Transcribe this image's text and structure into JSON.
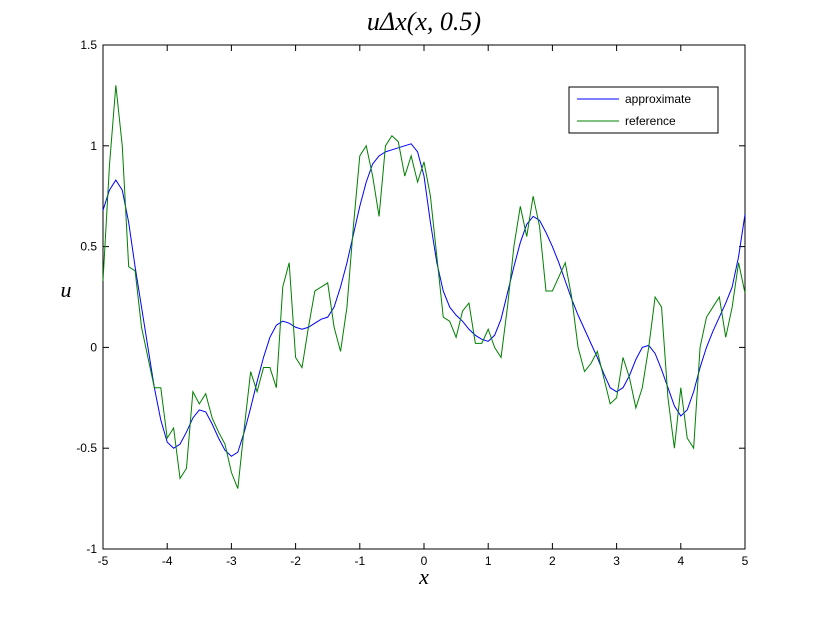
{
  "chart_data": {
    "type": "line",
    "title": "uΔx(x, 0.5)",
    "xlabel": "x",
    "ylabel": "u",
    "x": [
      -5.0,
      -4.9,
      -4.8,
      -4.7,
      -4.6,
      -4.5,
      -4.4,
      -4.3,
      -4.2,
      -4.1,
      -4.0,
      -3.9,
      -3.8,
      -3.7,
      -3.6,
      -3.5,
      -3.4,
      -3.3,
      -3.2,
      -3.1,
      -3.0,
      -2.9,
      -2.8,
      -2.7,
      -2.6,
      -2.5,
      -2.4,
      -2.3,
      -2.2,
      -2.1,
      -2.0,
      -1.9,
      -1.8,
      -1.7,
      -1.6,
      -1.5,
      -1.4,
      -1.3,
      -1.2,
      -1.1,
      -1.0,
      -0.9,
      -0.8,
      -0.7,
      -0.6,
      -0.5,
      -0.4,
      -0.3,
      -0.2,
      -0.1,
      0.0,
      0.1,
      0.2,
      0.3,
      0.4,
      0.5,
      0.6,
      0.7,
      0.8,
      0.9,
      1.0,
      1.1,
      1.2,
      1.3,
      1.4,
      1.5,
      1.6,
      1.7,
      1.8,
      1.9,
      2.0,
      2.1,
      2.2,
      2.3,
      2.4,
      2.5,
      2.6,
      2.7,
      2.8,
      2.9,
      3.0,
      3.1,
      3.2,
      3.3,
      3.4,
      3.5,
      3.6,
      3.7,
      3.8,
      3.9,
      4.0,
      4.1,
      4.2,
      4.3,
      4.4,
      4.5,
      4.6,
      4.7,
      4.8,
      4.9,
      5.0
    ],
    "series": [
      {
        "name": "approximate",
        "color": "#0000ff",
        "values": [
          0.68,
          0.78,
          0.83,
          0.78,
          0.62,
          0.4,
          0.2,
          0.0,
          -0.2,
          -0.36,
          -0.47,
          -0.5,
          -0.48,
          -0.42,
          -0.35,
          -0.31,
          -0.32,
          -0.38,
          -0.45,
          -0.51,
          -0.54,
          -0.52,
          -0.42,
          -0.3,
          -0.17,
          -0.05,
          0.05,
          0.11,
          0.13,
          0.12,
          0.1,
          0.09,
          0.1,
          0.12,
          0.14,
          0.15,
          0.2,
          0.3,
          0.42,
          0.56,
          0.7,
          0.82,
          0.91,
          0.95,
          0.97,
          0.98,
          0.99,
          1.0,
          1.01,
          0.97,
          0.85,
          0.62,
          0.42,
          0.28,
          0.2,
          0.16,
          0.13,
          0.09,
          0.06,
          0.04,
          0.03,
          0.06,
          0.14,
          0.27,
          0.4,
          0.52,
          0.61,
          0.65,
          0.63,
          0.57,
          0.5,
          0.42,
          0.33,
          0.24,
          0.16,
          0.09,
          0.02,
          -0.05,
          -0.13,
          -0.2,
          -0.22,
          -0.2,
          -0.14,
          -0.06,
          0.0,
          0.01,
          -0.03,
          -0.11,
          -0.2,
          -0.29,
          -0.34,
          -0.31,
          -0.22,
          -0.1,
          0.0,
          0.08,
          0.15,
          0.22,
          0.3,
          0.45,
          0.66
        ]
      },
      {
        "name": "reference",
        "color": "#008000",
        "values": [
          0.33,
          0.9,
          1.3,
          1.0,
          0.4,
          0.38,
          0.1,
          -0.05,
          -0.2,
          -0.2,
          -0.45,
          -0.4,
          -0.65,
          -0.6,
          -0.22,
          -0.28,
          -0.23,
          -0.35,
          -0.42,
          -0.48,
          -0.62,
          -0.7,
          -0.4,
          -0.12,
          -0.22,
          -0.1,
          -0.1,
          -0.2,
          0.3,
          0.42,
          -0.05,
          -0.1,
          0.1,
          0.28,
          0.3,
          0.32,
          0.1,
          -0.02,
          0.2,
          0.6,
          0.95,
          1.0,
          0.85,
          0.65,
          1.0,
          1.05,
          1.02,
          0.85,
          0.95,
          0.82,
          0.92,
          0.75,
          0.45,
          0.15,
          0.13,
          0.05,
          0.18,
          0.22,
          0.02,
          0.02,
          0.09,
          0.0,
          -0.05,
          0.2,
          0.5,
          0.7,
          0.55,
          0.75,
          0.6,
          0.28,
          0.28,
          0.35,
          0.42,
          0.25,
          0.0,
          -0.12,
          -0.08,
          -0.02,
          -0.15,
          -0.28,
          -0.25,
          -0.05,
          -0.15,
          -0.3,
          -0.2,
          0.0,
          0.25,
          0.2,
          -0.25,
          -0.5,
          -0.2,
          -0.45,
          -0.5,
          0.0,
          0.15,
          0.2,
          0.25,
          0.05,
          0.2,
          0.42,
          0.27
        ]
      }
    ],
    "xlim": [
      -5,
      5
    ],
    "ylim": [
      -1,
      1.5
    ],
    "xticks": [
      -5,
      -4,
      -3,
      -2,
      -1,
      0,
      1,
      2,
      3,
      4,
      5
    ],
    "yticks": [
      -1,
      -0.5,
      0,
      0.5,
      1,
      1.5
    ],
    "grid": false,
    "legend": "northeast"
  }
}
